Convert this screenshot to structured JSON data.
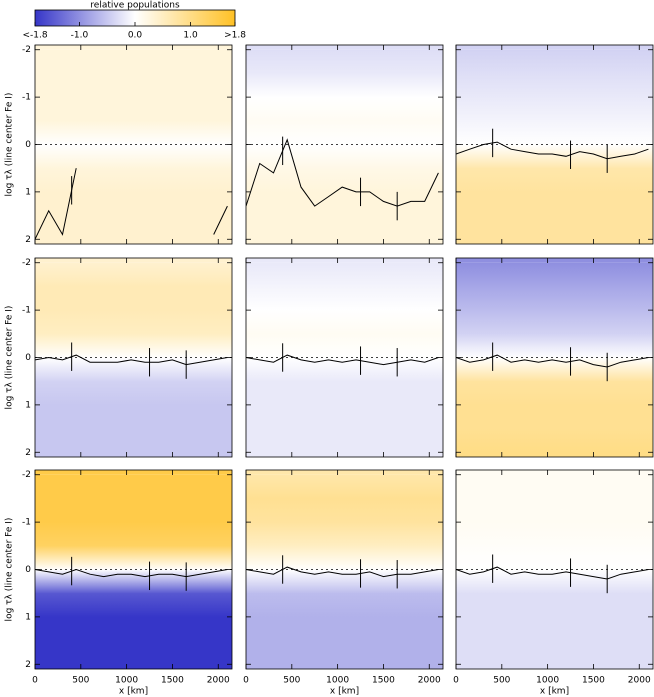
{
  "chart_data": {
    "type": "heatmap",
    "colorbar": {
      "label": "relative populations",
      "lim": [
        -1.8,
        1.8
      ],
      "ticks": [
        {
          "value": -1.8,
          "label": "<-1.8"
        },
        {
          "value": -1,
          "label": "-1.0"
        },
        {
          "value": 0,
          "label": "0.0"
        },
        {
          "value": 1,
          "label": "1.0"
        },
        {
          "value": 1.8,
          "label": ">1.8"
        }
      ],
      "colors": [
        "#3636c8",
        "#ffffff",
        "#ffc125"
      ]
    },
    "xlabel": "x [km]",
    "ylabel": "log τλ (line center Fe I)",
    "xlim": [
      0,
      2150
    ],
    "ylim": [
      -2.1,
      2.1
    ],
    "xticks": [
      0,
      500,
      1000,
      1500,
      2000
    ],
    "yticks": [
      -2,
      -1,
      0,
      1,
      2
    ],
    "reference_line": 0,
    "levels": [
      -2,
      -1.5,
      -1,
      -0.5,
      0,
      0.5,
      1,
      1.5,
      2
    ],
    "x": [
      0,
      150,
      300,
      450,
      600,
      750,
      900,
      1050,
      1200,
      1350,
      1500,
      1650,
      1800,
      1950,
      2100
    ],
    "markers_x": [
      400,
      1250,
      1650
    ],
    "panels": [
      {
        "profile": [
          0.3,
          0.3,
          0.3,
          0.3,
          0.0,
          0.3,
          0.4,
          0.4,
          0.4
        ],
        "curve": [
          2.0,
          1.4,
          1.9,
          0.5,
          null,
          null,
          null,
          null,
          null,
          null,
          null,
          null,
          null,
          1.9,
          1.3
        ]
      },
      {
        "profile": [
          -0.3,
          -0.2,
          0.0,
          0.1,
          0.0,
          0.2,
          0.3,
          0.3,
          0.3
        ],
        "curve": [
          1.3,
          0.4,
          0.6,
          -0.1,
          0.9,
          1.3,
          1.1,
          0.9,
          1.0,
          1.0,
          1.2,
          1.3,
          1.2,
          1.2,
          0.6
        ]
      },
      {
        "profile": [
          -0.4,
          -0.3,
          -0.2,
          -0.1,
          0.0,
          0.7,
          0.8,
          0.8,
          0.8
        ],
        "curve": [
          0.2,
          0.1,
          0.0,
          -0.05,
          0.1,
          0.15,
          0.2,
          0.2,
          0.25,
          0.15,
          0.2,
          0.3,
          0.25,
          0.2,
          0.1
        ]
      },
      {
        "profile": [
          0.4,
          0.6,
          0.6,
          0.5,
          0.0,
          -0.4,
          -0.5,
          -0.5,
          -0.5
        ],
        "curve": [
          0.05,
          0.0,
          0.05,
          -0.05,
          0.1,
          0.1,
          0.1,
          0.05,
          0.1,
          0.1,
          0.05,
          0.15,
          0.1,
          0.05,
          0.0
        ]
      },
      {
        "profile": [
          -0.2,
          -0.1,
          0.0,
          0.1,
          0.0,
          -0.2,
          -0.2,
          -0.2,
          -0.2
        ],
        "curve": [
          0.0,
          0.05,
          0.1,
          -0.05,
          0.05,
          0.1,
          0.05,
          0.1,
          0.05,
          0.1,
          0.15,
          0.1,
          0.05,
          0.1,
          0.0
        ]
      },
      {
        "profile": [
          -1.0,
          -0.8,
          -0.6,
          -0.4,
          0.0,
          0.8,
          0.9,
          0.9,
          1.0
        ],
        "curve": [
          0.0,
          0.1,
          0.05,
          -0.05,
          0.1,
          0.05,
          0.1,
          0.05,
          0.1,
          0.05,
          0.15,
          0.2,
          0.1,
          0.05,
          0.0
        ]
      },
      {
        "profile": [
          1.5,
          1.5,
          1.5,
          1.3,
          0.0,
          -1.5,
          -1.8,
          -1.8,
          -1.8
        ],
        "curve": [
          0.0,
          0.05,
          0.1,
          0.0,
          0.1,
          0.15,
          0.1,
          0.1,
          0.15,
          0.1,
          0.1,
          0.15,
          0.1,
          0.05,
          0.0
        ]
      },
      {
        "profile": [
          0.7,
          0.9,
          0.8,
          0.5,
          0.0,
          -0.6,
          -0.7,
          -0.7,
          -0.7
        ],
        "curve": [
          0.0,
          0.05,
          0.1,
          -0.05,
          0.05,
          0.1,
          0.05,
          0.1,
          0.1,
          0.05,
          0.15,
          0.1,
          0.1,
          0.05,
          0.0
        ]
      },
      {
        "profile": [
          0.1,
          0.1,
          0.1,
          0.05,
          0.0,
          -0.3,
          -0.3,
          -0.3,
          -0.3
        ],
        "curve": [
          0.0,
          0.1,
          0.05,
          -0.05,
          0.1,
          0.05,
          0.1,
          0.1,
          0.05,
          0.1,
          0.15,
          0.2,
          0.1,
          0.05,
          0.0
        ]
      }
    ]
  }
}
